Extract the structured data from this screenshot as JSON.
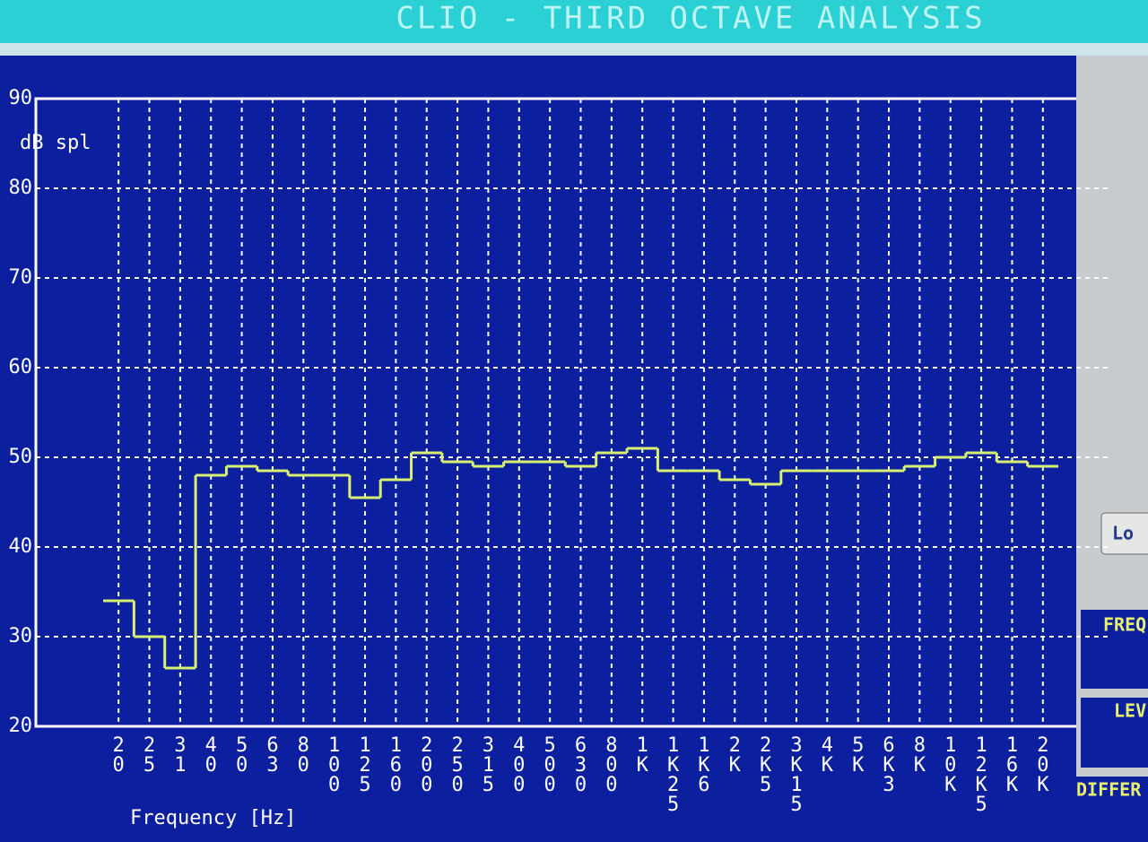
{
  "chart_data": {
    "type": "step",
    "title": "CLIO - THIRD OCTAVE ANALYSIS",
    "y_label": "dB spl",
    "x_label": "Frequency [Hz]",
    "categories": [
      "20",
      "25",
      "31",
      "40",
      "50",
      "63",
      "80",
      "100",
      "125",
      "160",
      "200",
      "250",
      "315",
      "400",
      "500",
      "630",
      "800",
      "1K",
      "1K25",
      "1K6",
      "2K",
      "2K5",
      "3K15",
      "4K",
      "5K",
      "6K3",
      "8K",
      "10K",
      "12K5",
      "16K",
      "20K"
    ],
    "values": [
      34,
      30,
      26.5,
      48,
      49,
      48.5,
      48,
      48,
      45.5,
      47.5,
      50.5,
      49.5,
      49,
      49.5,
      49.5,
      49,
      50.5,
      51,
      48.5,
      48.5,
      47.5,
      47,
      48.5,
      48.5,
      48.5,
      48.5,
      49,
      50,
      50.5,
      49.5,
      49
    ],
    "color": "#d8f070",
    "ylim": [
      20,
      90
    ],
    "yticks": [
      20,
      30,
      40,
      50,
      60,
      70,
      80,
      90
    ],
    "grid": true
  },
  "side_panel": {
    "button": "Lo",
    "labels": [
      "FREQ",
      "LEV",
      "DIFFER"
    ]
  }
}
